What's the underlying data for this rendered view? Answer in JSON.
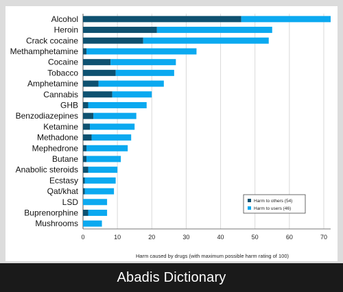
{
  "chart_data": {
    "type": "bar",
    "orientation": "horizontal",
    "stacked": true,
    "categories": [
      "Alcohol",
      "Heroin",
      "Crack cocaine",
      "Methamphetamine",
      "Cocaine",
      "Tobacco",
      "Amphetamine",
      "Cannabis",
      "GHB",
      "Benzodiazepines",
      "Ketamine",
      "Methadone",
      "Mephedrone",
      "Butane",
      "Anabolic steroids",
      "Ecstasy",
      "Qat/khat",
      "LSD",
      "Buprenorphine",
      "Mushrooms"
    ],
    "series": [
      {
        "name": "Harm to others (54)",
        "color": "#0e5170",
        "values": [
          46,
          21.5,
          17.5,
          1,
          8,
          9.5,
          4.5,
          8.5,
          1.5,
          3,
          2,
          2.5,
          1,
          1,
          1.5,
          0.5,
          0.5,
          0,
          1.5,
          0
        ]
      },
      {
        "name": "Harm to users (46)",
        "color": "#0ba9f0",
        "values": [
          26,
          33.5,
          36.5,
          32,
          19,
          17,
          19,
          11.5,
          17,
          12.5,
          13,
          11.5,
          12,
          10,
          8.5,
          9,
          8.5,
          7,
          5.5,
          5.5
        ]
      }
    ],
    "xlabel": "Harm caused by drugs (with maximum possible harm rating of 100)",
    "xlim": [
      0,
      72
    ],
    "xticks": [
      0,
      10,
      20,
      30,
      40,
      50,
      60,
      70
    ],
    "grid": "vertical",
    "legend_position": "bottom-right"
  },
  "footer": {
    "text": "Abadis Dictionary"
  }
}
